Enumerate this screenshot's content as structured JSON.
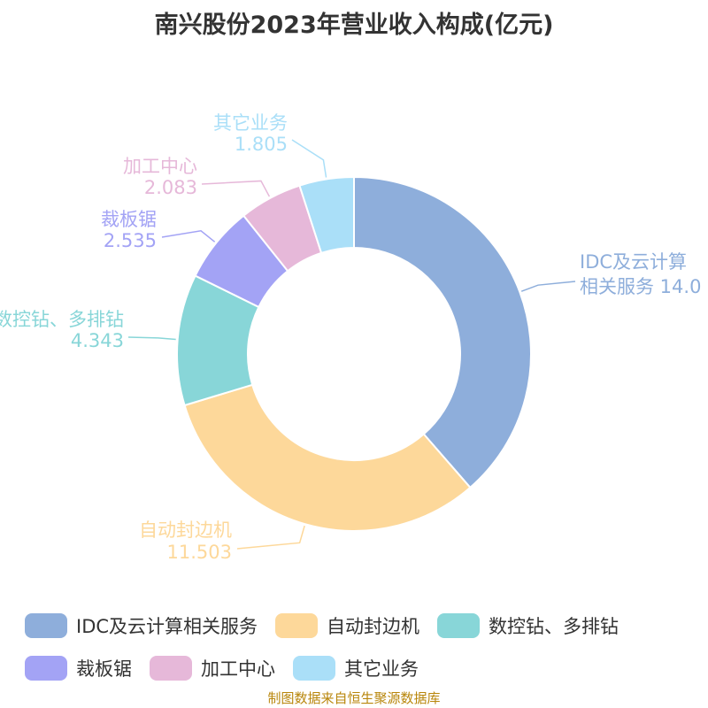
{
  "chart_data": {
    "type": "pie",
    "title": "南兴股份2023年营业收入构成(亿元)",
    "unit": "亿元",
    "categories": [
      "IDC及云计算相关服务",
      "自动封边机",
      "数控钻、多排钻",
      "裁板锯",
      "加工中心",
      "其它业务"
    ],
    "values": [
      14.0,
      11.503,
      4.343,
      2.535,
      2.083,
      1.805
    ],
    "value_labels": [
      "14.0",
      "11.503",
      "4.343",
      "2.535",
      "2.083",
      "1.805"
    ],
    "label_lines": [
      [
        "IDC及云计算",
        "相关服务 14.0"
      ],
      [
        "自动封边机",
        "11.503"
      ],
      [
        "数控钻、多排钻",
        "4.343"
      ],
      [
        "裁板锯",
        "2.535"
      ],
      [
        "加工中心",
        "2.083"
      ],
      [
        "其它业务",
        "1.805"
      ]
    ],
    "colors": [
      "#8eaedb",
      "#fdd89a",
      "#88d6d8",
      "#a3a3f5",
      "#e6b8d9",
      "#aadff8"
    ],
    "legend_position": "bottom"
  },
  "source": "制图数据来自恒生聚源数据库"
}
